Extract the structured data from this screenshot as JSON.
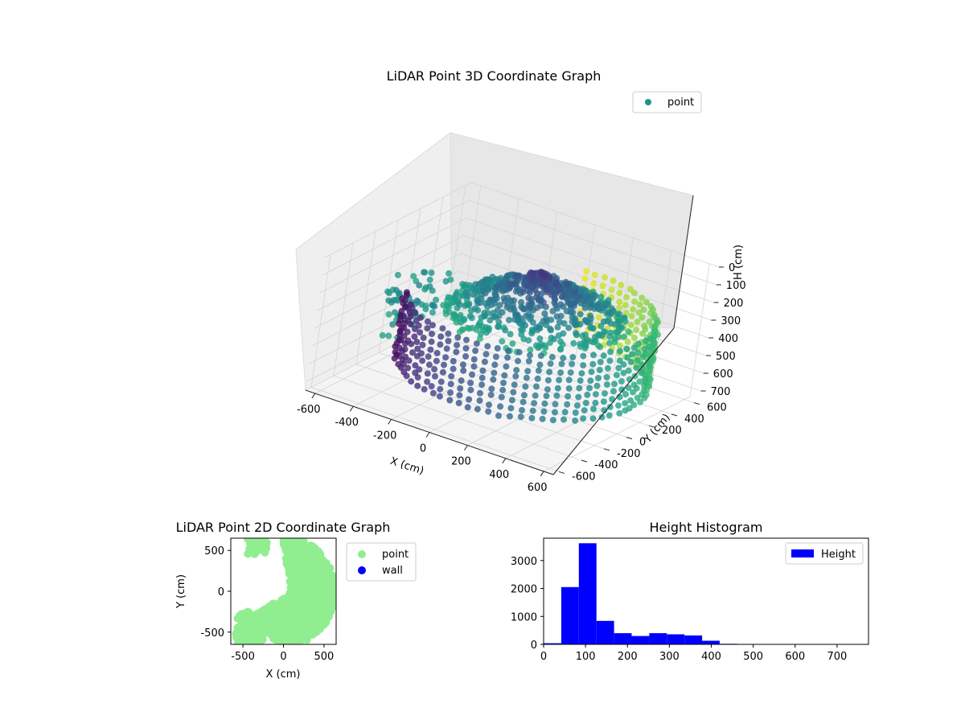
{
  "chart_data": [
    {
      "type": "scatter3d",
      "title": "LiDAR Point 3D Coordinate Graph",
      "xlabel": "X (cm)",
      "ylabel": "Y (cm)",
      "zlabel": "H (cm)",
      "x_ticks": [
        -600,
        -400,
        -200,
        0,
        200,
        400,
        600
      ],
      "y_ticks": [
        -600,
        -400,
        -200,
        0,
        200,
        400,
        600
      ],
      "z_ticks": [
        0,
        100,
        200,
        300,
        400,
        500,
        600,
        700
      ],
      "xlim": [
        -650,
        650
      ],
      "ylim": [
        -650,
        650
      ],
      "zlim": [
        0,
        750
      ],
      "z_inverted": true,
      "colormap": "viridis",
      "legend": {
        "placement": "top-right",
        "entries": [
          {
            "label": "point",
            "color": "#21918c"
          }
        ]
      },
      "series": [
        {
          "name": "point",
          "description_points": "ring of points near radius 600 plus inner cluster",
          "values": []
        }
      ]
    },
    {
      "type": "scatter",
      "title": "LiDAR Point 2D Coordinate Graph",
      "xlabel": "X (cm)",
      "ylabel": "Y (cm)",
      "x_ticks": [
        -500,
        0,
        500
      ],
      "y_ticks": [
        -500,
        0,
        500
      ],
      "xlim": [
        -650,
        650
      ],
      "ylim": [
        -650,
        650
      ],
      "legend": {
        "placement": "outside-right",
        "entries": [
          {
            "label": "point",
            "color": "#90ee90"
          },
          {
            "label": "wall",
            "color": "#0000ff"
          }
        ]
      },
      "series": [
        {
          "name": "point",
          "color": "#90ee90"
        },
        {
          "name": "wall",
          "color": "#0000ff"
        }
      ]
    },
    {
      "type": "bar",
      "title": "Height Histogram",
      "x_ticks": [
        0,
        100,
        200,
        300,
        400,
        500,
        600,
        700
      ],
      "y_ticks": [
        0,
        1000,
        2000,
        3000
      ],
      "xlim": [
        0,
        775
      ],
      "ylim": [
        0,
        3800
      ],
      "bin_width": 42,
      "bin_edges": [
        0,
        42,
        84,
        126,
        168,
        210,
        252,
        294,
        336,
        378,
        420,
        462,
        504,
        546,
        588,
        630,
        672,
        714,
        756
      ],
      "values": [
        40,
        2050,
        3620,
        840,
        400,
        300,
        400,
        360,
        320,
        130,
        20,
        10,
        8,
        6,
        5,
        5,
        4,
        4
      ],
      "legend": {
        "placement": "top-right",
        "entries": [
          {
            "label": "Height",
            "color": "#0000ff"
          }
        ]
      },
      "series": [
        {
          "name": "Height",
          "color": "#0000ff"
        }
      ]
    }
  ]
}
